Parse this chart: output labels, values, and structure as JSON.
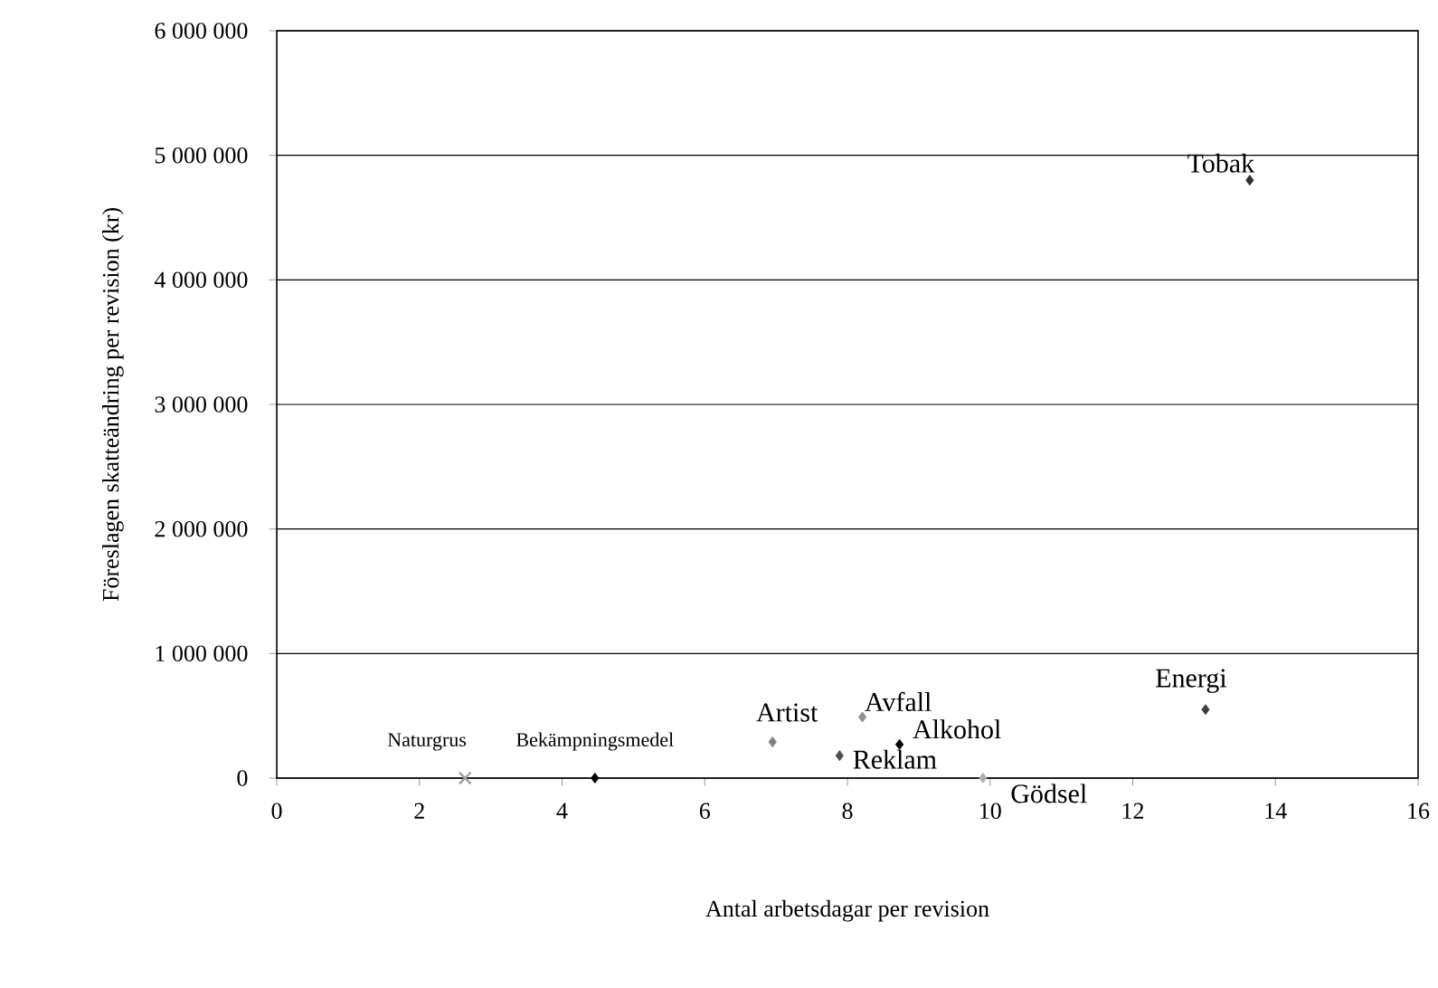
{
  "chart_data": {
    "type": "scatter",
    "xlabel": "Antal arbetsdagar per revision",
    "ylabel": "Föreslagen skatteändring per revision (kr)",
    "xlim": [
      0,
      16
    ],
    "xticks": [
      0,
      2,
      4,
      6,
      8,
      10,
      12,
      14,
      16
    ],
    "ylim": [
      0,
      6000000
    ],
    "yticks": [
      {
        "value": 0,
        "label": "0"
      },
      {
        "value": 1000000,
        "label": "1 000 000"
      },
      {
        "value": 2000000,
        "label": "2 000 000"
      },
      {
        "value": 3000000,
        "label": "3 000 000"
      },
      {
        "value": 4000000,
        "label": "4 000 000"
      },
      {
        "value": 5000000,
        "label": "5 000 000"
      },
      {
        "value": 6000000,
        "label": "6 000 000"
      }
    ],
    "grid": "y",
    "legend": false,
    "marker": "diamond",
    "series": [
      {
        "name": "Naturgrus",
        "color": "#a0a0a0",
        "marker": "cross",
        "x": [
          2.64
        ],
        "values": [
          0
        ]
      },
      {
        "name": "Bekämpningsmedel",
        "color": "#000000",
        "x": [
          4.46
        ],
        "values": [
          0
        ]
      },
      {
        "name": "Artist",
        "color": "#808080",
        "x": [
          6.95
        ],
        "values": [
          290000
        ]
      },
      {
        "name": "Avfall",
        "color": "#909090",
        "x": [
          8.21
        ],
        "values": [
          490000
        ]
      },
      {
        "name": "Alkohol",
        "color": "#000000",
        "x": [
          8.73
        ],
        "values": [
          270000
        ]
      },
      {
        "name": "Reklam",
        "color": "#505050",
        "x": [
          7.89
        ],
        "values": [
          180000
        ]
      },
      {
        "name": "Gödsel",
        "color": "#b0b0b0",
        "x": [
          9.9
        ],
        "values": [
          0
        ]
      },
      {
        "name": "Energi",
        "color": "#404040",
        "x": [
          13.02
        ],
        "values": [
          550000
        ]
      },
      {
        "name": "Tobak",
        "color": "#303030",
        "x": [
          13.64
        ],
        "values": [
          4800000
        ]
      }
    ]
  }
}
